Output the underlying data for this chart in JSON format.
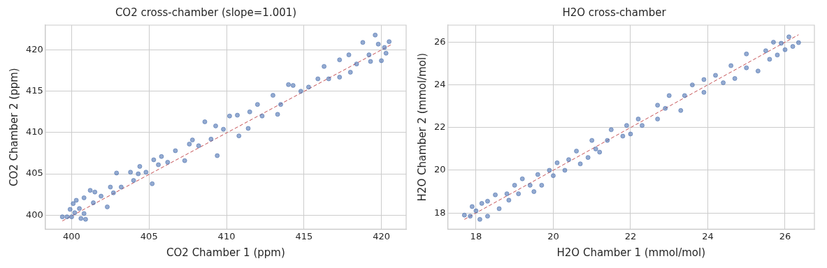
{
  "chart_data": [
    {
      "type": "scatter",
      "title": "CO2 cross-chamber (slope=1.001)",
      "xlabel": "CO2 Chamber 1 (ppm)",
      "ylabel": "CO2 Chamber 2 (ppm)",
      "xlim": [
        398.3,
        421.6
      ],
      "ylim": [
        398.3,
        423.0
      ],
      "xticks": [
        400,
        405,
        410,
        415,
        420
      ],
      "yticks": [
        400,
        405,
        410,
        415,
        420
      ],
      "grid": true,
      "legend": false,
      "marker": "circle",
      "series": [
        {
          "type": "scatter",
          "color": "#4c72b0",
          "x": [
            399.4,
            399.7,
            399.9,
            400.0,
            400.1,
            400.2,
            400.3,
            400.5,
            400.6,
            400.8,
            400.9,
            400.8,
            401.2,
            401.4,
            401.5,
            401.9,
            402.3,
            402.5,
            402.7,
            402.9,
            403.2,
            403.8,
            404.0,
            404.3,
            404.4,
            404.8,
            405.2,
            405.3,
            405.6,
            405.8,
            406.2,
            406.7,
            407.3,
            407.6,
            407.8,
            408.2,
            408.6,
            409.0,
            409.3,
            409.4,
            409.8,
            410.2,
            410.7,
            410.8,
            411.4,
            411.5,
            412.0,
            412.3,
            413.0,
            413.3,
            413.5,
            414.0,
            414.3,
            414.8,
            415.3,
            415.9,
            416.3,
            416.6,
            417.3,
            417.3,
            417.9,
            418.0,
            418.4,
            418.8,
            419.2,
            419.3,
            419.6,
            419.8,
            420.0,
            420.2,
            420.3,
            420.5
          ],
          "values": [
            399.8,
            399.8,
            400.7,
            399.8,
            401.4,
            400.3,
            401.8,
            400.8,
            399.6,
            400.2,
            399.5,
            402.1,
            403.0,
            401.5,
            402.8,
            402.3,
            401.0,
            403.4,
            402.7,
            405.1,
            403.4,
            405.2,
            404.2,
            405.0,
            405.9,
            405.2,
            403.8,
            406.7,
            406.1,
            407.1,
            406.4,
            407.8,
            406.6,
            408.6,
            409.1,
            408.4,
            411.3,
            409.2,
            410.8,
            407.2,
            410.4,
            412.0,
            412.1,
            409.6,
            410.5,
            412.5,
            413.4,
            412.0,
            414.5,
            412.2,
            413.4,
            415.8,
            415.7,
            415.0,
            415.5,
            416.5,
            418.0,
            416.5,
            416.7,
            418.8,
            419.4,
            417.3,
            418.3,
            420.9,
            419.4,
            418.6,
            421.8,
            420.7,
            418.7,
            420.3,
            419.6,
            421.0
          ]
        },
        {
          "type": "line",
          "color": "#c44e52",
          "line_style": "dashed",
          "marker": "none",
          "x": [
            399.4,
            420.6
          ],
          "values": [
            399.3,
            420.6
          ]
        }
      ]
    },
    {
      "type": "scatter",
      "title": "H2O cross-chamber",
      "xlabel": "H2O Chamber 1 (mmol/mol)",
      "ylabel": "H2O Chamber 2 (mmol/mol)",
      "xlim": [
        17.27,
        26.76
      ],
      "ylim": [
        17.24,
        26.8
      ],
      "xticks": [
        18,
        20,
        22,
        24,
        26
      ],
      "yticks": [
        18,
        20,
        22,
        24,
        26
      ],
      "grid": true,
      "legend": false,
      "marker": "circle",
      "series": [
        {
          "type": "scatter",
          "color": "#4c72b0",
          "x": [
            17.7,
            17.85,
            17.9,
            18.0,
            18.1,
            18.15,
            18.3,
            18.3,
            18.5,
            18.6,
            18.8,
            18.85,
            19.0,
            19.1,
            19.2,
            19.4,
            19.5,
            19.6,
            19.7,
            19.9,
            20.0,
            20.1,
            20.3,
            20.4,
            20.6,
            20.7,
            20.9,
            21.0,
            21.1,
            21.2,
            21.4,
            21.5,
            21.8,
            21.9,
            22.0,
            22.2,
            22.3,
            22.7,
            22.7,
            22.9,
            23.0,
            23.3,
            23.4,
            23.6,
            23.9,
            23.9,
            24.2,
            24.4,
            24.6,
            24.7,
            25.0,
            25.0,
            25.3,
            25.5,
            25.6,
            25.7,
            25.8,
            25.9,
            26.0,
            26.1,
            26.2,
            26.35
          ],
          "values": [
            17.9,
            17.85,
            18.3,
            18.1,
            17.7,
            18.45,
            17.85,
            18.55,
            18.85,
            18.2,
            18.9,
            18.6,
            19.3,
            18.9,
            19.6,
            19.3,
            19.0,
            19.8,
            19.3,
            20.0,
            19.75,
            20.35,
            20.0,
            20.5,
            20.9,
            20.3,
            20.6,
            21.4,
            21.0,
            20.85,
            21.4,
            21.9,
            21.6,
            22.1,
            21.7,
            22.4,
            22.1,
            23.05,
            22.4,
            22.9,
            23.5,
            22.8,
            23.5,
            24.0,
            23.65,
            24.25,
            24.45,
            24.1,
            24.9,
            24.3,
            24.8,
            25.45,
            24.65,
            25.6,
            25.2,
            26.0,
            25.4,
            25.95,
            25.65,
            26.25,
            25.8,
            25.98
          ]
        },
        {
          "type": "line",
          "color": "#c44e52",
          "line_style": "dashed",
          "marker": "none",
          "x": [
            17.7,
            26.35
          ],
          "values": [
            17.7,
            26.35
          ]
        }
      ]
    }
  ]
}
